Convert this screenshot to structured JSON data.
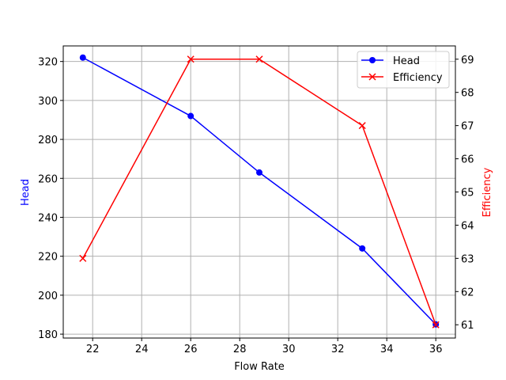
{
  "chart_data": {
    "type": "line",
    "title": "",
    "xlabel": "Flow Rate",
    "ylabel": "Head",
    "y2label": "Efficiency",
    "x": [
      21.6,
      26.0,
      28.8,
      33.0,
      36.0
    ],
    "series": [
      {
        "name": "Head",
        "axis": "left",
        "color": "#0000ff",
        "marker": "o",
        "values": [
          322,
          292,
          263,
          224,
          185
        ]
      },
      {
        "name": "Efficiency",
        "axis": "right",
        "color": "#ff0000",
        "marker": "x",
        "values": [
          63,
          69,
          69,
          67,
          61
        ]
      }
    ],
    "xlim": [
      20.8,
      36.8
    ],
    "ylim": [
      178,
      328
    ],
    "y2lim": [
      60.6,
      69.4
    ],
    "xticks": [
      22,
      24,
      26,
      28,
      30,
      32,
      34,
      36
    ],
    "yticks": [
      180,
      200,
      220,
      240,
      260,
      280,
      300,
      320
    ],
    "y2ticks": [
      61,
      62,
      63,
      64,
      65,
      66,
      67,
      68,
      69
    ],
    "grid": true,
    "legend_position": "upper right"
  },
  "legend": {
    "head": "Head",
    "efficiency": "Efficiency"
  },
  "labels": {
    "x": "Flow Rate",
    "y": "Head",
    "y2": "Efficiency"
  }
}
